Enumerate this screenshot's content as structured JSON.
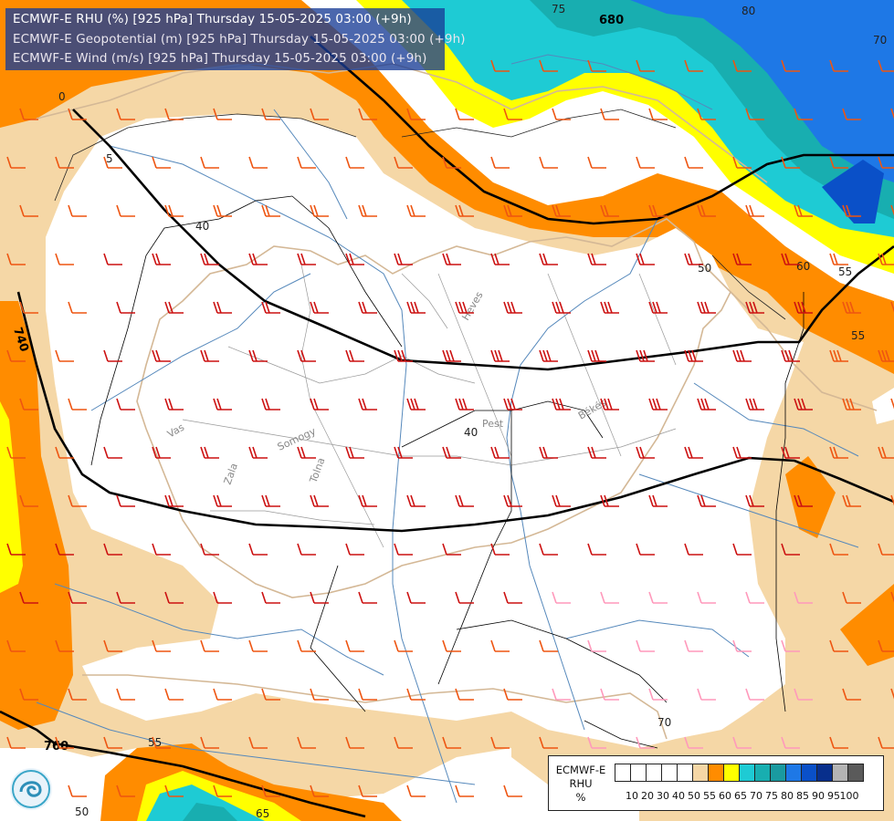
{
  "header": {
    "line1": "ECMWF-E RHU (%) [925 hPa] Thursday 15-05-2025 03:00 (+9h)",
    "line2": "ECMWF-E Geopotential (m) [925 hPa] Thursday 15-05-2025 03:00 (+9h)",
    "line3": "ECMWF-E Wind (m/s) [925 hPa] Thursday 15-05-2025 03:00 (+9h)"
  },
  "legend": {
    "title_line1": "ECMWF-E",
    "title_line2": "RHU",
    "title_line3": "%",
    "bins": [
      {
        "color": "#ffffff"
      },
      {
        "color": "#ffffff"
      },
      {
        "color": "#ffffff"
      },
      {
        "color": "#ffffff"
      },
      {
        "color": "#ffffff"
      },
      {
        "color": "#f5d7a6"
      },
      {
        "color": "#ff8c00"
      },
      {
        "color": "#ffff00"
      },
      {
        "color": "#1ecbd4"
      },
      {
        "color": "#18aeb0"
      },
      {
        "color": "#1a9aa0"
      },
      {
        "color": "#1e78e6"
      },
      {
        "color": "#0a50c8"
      },
      {
        "color": "#082f8c"
      },
      {
        "color": "#b4b4b4"
      },
      {
        "color": "#5a5a5a"
      }
    ],
    "ticks": [
      "10",
      "20",
      "30",
      "40",
      "50",
      "55",
      "60",
      "65",
      "70",
      "75",
      "80",
      "85",
      "90",
      "95",
      "100"
    ]
  },
  "geopotential_labels": [
    "680",
    "740",
    "760"
  ],
  "rhu_contour_labels": [
    "75",
    "80",
    "70",
    "40",
    "50",
    "60",
    "55",
    "55",
    "40",
    "70",
    "55",
    "65",
    "50",
    "5",
    "0"
  ],
  "city_labels": [
    "Heves",
    "Békés",
    "Pest",
    "Vas",
    "Somogy",
    "Tolna",
    "Zala"
  ],
  "colors": {
    "rhu_55": "#f5d7a6",
    "rhu_60": "#ff8c00",
    "rhu_65": "#ffff00",
    "rhu_70": "#1ecbd4",
    "rhu_75": "#18aeb0",
    "rhu_80": "#1e78e6",
    "rhu_85": "#0a50c8",
    "wind_strong": "#cc1111",
    "wind_medium": "#ee5511",
    "wind_light": "#ff99bb",
    "border": "#d4b896",
    "river": "#5588bb",
    "geopotential": "#000000"
  },
  "logo_icon": "ecmwf-swirl-icon"
}
